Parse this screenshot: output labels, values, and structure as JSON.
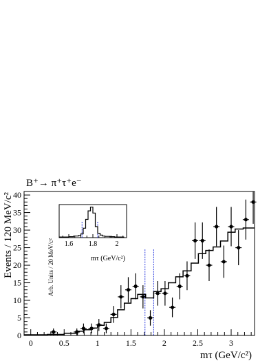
{
  "chart_data": {
    "type": "scatter",
    "title": "B⁺→ π⁺τ⁺e⁻",
    "xlabel": "mτ (GeV/c²)",
    "ylabel": "Events / 120 MeV/c²",
    "xlim": [
      -0.1,
      3.35
    ],
    "ylim": [
      0,
      41
    ],
    "xticks": [
      "0",
      "0.5",
      "1",
      "1.5",
      "2",
      "2.5",
      "3"
    ],
    "yticks": [
      "0",
      "5",
      "10",
      "15",
      "20",
      "25",
      "30",
      "35",
      "40"
    ],
    "grid": false,
    "signal_window": [
      1.71,
      1.84
    ],
    "series": [
      {
        "kind": "points_with_errors",
        "x": [
          0.34,
          0.69,
          0.79,
          0.91,
          1.02,
          1.13,
          1.24,
          1.35,
          1.46,
          1.57,
          1.68,
          1.79,
          1.9,
          2.01,
          2.12,
          2.23,
          2.34,
          2.46,
          2.57,
          2.67,
          2.78,
          2.89,
          3.0,
          3.11,
          3.22,
          3.33
        ],
        "y": [
          1,
          1,
          2,
          2,
          3,
          2,
          6,
          11,
          13,
          14,
          11,
          5,
          12,
          12,
          8,
          14,
          17,
          27,
          27,
          20,
          31,
          21,
          31,
          25,
          33,
          38
        ],
        "yerr": [
          1.0,
          1.0,
          1.4,
          1.4,
          1.7,
          1.4,
          2.4,
          3.3,
          3.6,
          3.7,
          3.3,
          2.2,
          3.5,
          3.5,
          2.8,
          3.7,
          4.1,
          5.2,
          5.2,
          4.5,
          5.6,
          4.6,
          5.6,
          5.0,
          5.7,
          6.2
        ]
      },
      {
        "kind": "step_histogram",
        "edges": [
          -0.1,
          0.25,
          0.5,
          0.7,
          0.8,
          0.9,
          1.0,
          1.1,
          1.2,
          1.3,
          1.4,
          1.5,
          1.6,
          1.72,
          1.84,
          1.95,
          2.06,
          2.17,
          2.28,
          2.4,
          2.51,
          2.62,
          2.73,
          2.84,
          2.95,
          3.06,
          3.18,
          3.35
        ],
        "values": [
          0.2,
          0.3,
          0.6,
          1.2,
          1.6,
          2.1,
          2.9,
          3.7,
          5.1,
          7.3,
          9.2,
          10.5,
          11.7,
          10.7,
          12.5,
          13.3,
          15.0,
          16.7,
          18.4,
          20.6,
          23.3,
          24.2,
          25.2,
          26.9,
          29.4,
          30.3,
          30.6
        ]
      }
    ],
    "inset": {
      "ylabel": "Arb. Units / 20 MeV/c²",
      "xlabel": "mτ (GeV/c²)",
      "xlim": [
        1.52,
        2.08
      ],
      "xticks": [
        "1.6",
        "1.8",
        "2"
      ],
      "cut_lines": [
        1.71,
        1.84
      ],
      "edges": [
        1.52,
        1.56,
        1.6,
        1.64,
        1.68,
        1.7,
        1.72,
        1.74,
        1.76,
        1.78,
        1.8,
        1.82,
        1.84,
        1.86,
        1.88,
        1.9,
        1.94,
        1.98,
        2.02,
        2.06
      ],
      "values": [
        0.02,
        0.02,
        0.03,
        0.05,
        0.07,
        0.12,
        0.3,
        0.58,
        0.85,
        0.97,
        0.78,
        0.35,
        0.14,
        0.08,
        0.05,
        0.04,
        0.03,
        0.02,
        0.02
      ]
    }
  }
}
